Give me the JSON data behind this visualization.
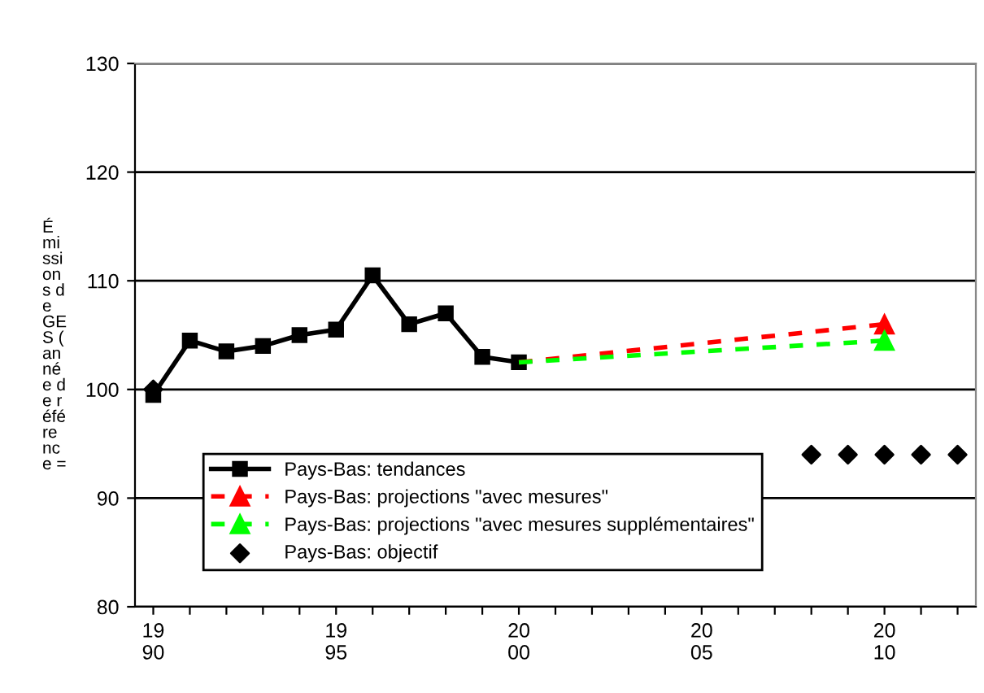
{
  "chart_data": {
    "type": "line",
    "ylabel": "Émissions de GES (année de référence =",
    "categories": [
      "19\n90",
      null,
      null,
      null,
      null,
      "19\n95",
      null,
      null,
      null,
      null,
      "20\n00",
      null,
      null,
      null,
      null,
      "20\n05",
      null,
      null,
      null,
      null,
      "20\n10",
      null,
      null
    ],
    "ylim": [
      80,
      130
    ],
    "yticks": [
      80,
      90,
      100,
      110,
      120,
      130
    ],
    "grid": "y",
    "legend": "bottom left",
    "series": [
      {
        "name": "Pays-Bas: tendances",
        "color": "#000000",
        "marker": "square",
        "line_style": "solid",
        "values": [
          99.5,
          104.5,
          103.5,
          104,
          105,
          105.5,
          110.5,
          106,
          107,
          103,
          102.5,
          null,
          null,
          null,
          null,
          null,
          null,
          null,
          null,
          null,
          null,
          null,
          null
        ]
      },
      {
        "name": "Pays-Bas: projections \"avec mesures\"",
        "color": "#ff0000",
        "marker": "triangle",
        "line_style": "dashed",
        "values": [
          null,
          null,
          null,
          null,
          null,
          null,
          null,
          null,
          null,
          null,
          102.5,
          null,
          null,
          null,
          null,
          null,
          null,
          null,
          null,
          null,
          106,
          null,
          null
        ]
      },
      {
        "name": "Pays-Bas: projections \"avec mesures supplémentaires\"",
        "color": "#00ff00",
        "marker": "triangle",
        "line_style": "dashed",
        "values": [
          null,
          null,
          null,
          null,
          null,
          null,
          null,
          null,
          null,
          null,
          102.5,
          null,
          null,
          null,
          null,
          null,
          null,
          null,
          null,
          null,
          104.5,
          null,
          null
        ]
      },
      {
        "name": "Pays-Bas: objectif",
        "type": "scatter",
        "color": "#000000",
        "marker": "diamond",
        "values": [
          100,
          null,
          null,
          null,
          null,
          null,
          null,
          null,
          null,
          null,
          null,
          null,
          null,
          null,
          null,
          null,
          null,
          null,
          94,
          94,
          94,
          94,
          94
        ]
      }
    ]
  }
}
